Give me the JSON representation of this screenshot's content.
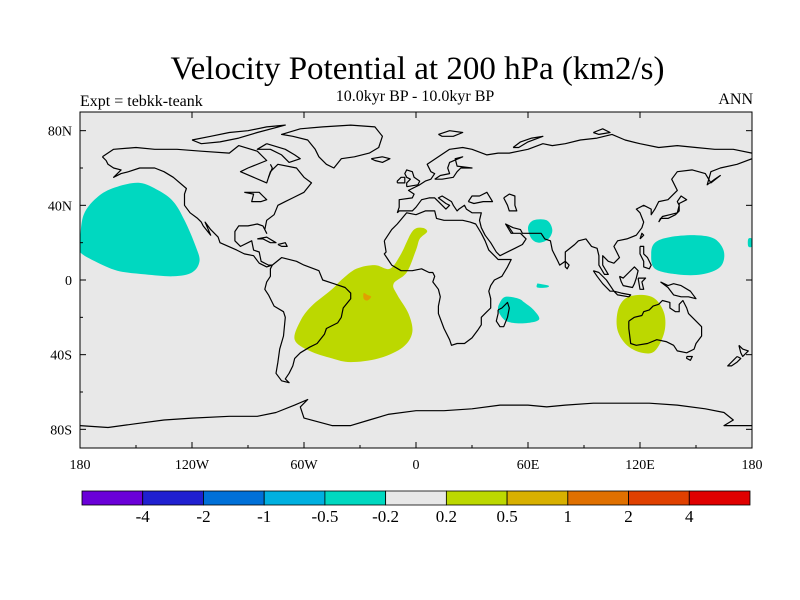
{
  "title": "Velocity Potential at 200 hPa (km2/s)",
  "subtitle": "10.0kyr BP - 10.0kyr BP",
  "expt_label": "Expt = tebkk-teank",
  "season": "ANN",
  "colors": {
    "background_field": "#e8e8e8",
    "negative_anomaly": "#00d8c0",
    "positive_anomaly": "#bcd800",
    "positive_core": "#e0a000",
    "coastline": "#000000"
  },
  "chart_data": {
    "type": "map",
    "projection": "cylindrical-equidistant",
    "x_ticks": [
      "180",
      "120W",
      "60W",
      "0",
      "60E",
      "120E",
      "180"
    ],
    "x_tick_values": [
      -180,
      -120,
      -60,
      0,
      60,
      120,
      180
    ],
    "y_ticks": [
      "80N",
      "40N",
      "0",
      "40S",
      "80S"
    ],
    "y_tick_values": [
      80,
      40,
      0,
      -40,
      -80
    ],
    "lon_range": [
      -180,
      180
    ],
    "lat_range": [
      -90,
      90
    ],
    "anomaly_regions": [
      {
        "name": "north-pacific-negative",
        "class": "-0.5 to -0.2",
        "polygon": [
          [
            -180,
            20
          ],
          [
            -178,
            35
          ],
          [
            -170,
            45
          ],
          [
            -160,
            50
          ],
          [
            -148,
            52
          ],
          [
            -138,
            48
          ],
          [
            -130,
            42
          ],
          [
            -124,
            32
          ],
          [
            -118,
            18
          ],
          [
            -116,
            10
          ],
          [
            -120,
            4
          ],
          [
            -130,
            2
          ],
          [
            -145,
            3
          ],
          [
            -160,
            5
          ],
          [
            -172,
            10
          ],
          [
            -180,
            15
          ]
        ]
      },
      {
        "name": "atlantic-positive",
        "class": "0.2 to 0.5",
        "polygon": [
          [
            -45,
            -5
          ],
          [
            -56,
            -14
          ],
          [
            -62,
            -22
          ],
          [
            -65,
            -32
          ],
          [
            -57,
            -38
          ],
          [
            -45,
            -42
          ],
          [
            -35,
            -44
          ],
          [
            -20,
            -42
          ],
          [
            -7,
            -36
          ],
          [
            -2,
            -28
          ],
          [
            -4,
            -18
          ],
          [
            -10,
            -8
          ],
          [
            -12,
            -2
          ],
          [
            -5,
            4
          ],
          [
            0,
            16
          ],
          [
            2,
            22
          ],
          [
            6,
            26
          ],
          [
            3,
            28
          ],
          [
            -2,
            26
          ],
          [
            -8,
            14
          ],
          [
            -14,
            6
          ],
          [
            -22,
            8
          ],
          [
            -32,
            6
          ],
          [
            -40,
            0
          ]
        ]
      },
      {
        "name": "atlantic-core-positive",
        "class": "0.5 to 1",
        "polygon": [
          [
            -28,
            -7
          ],
          [
            -26,
            -8
          ],
          [
            -24,
            -9
          ],
          [
            -26,
            -11
          ],
          [
            -28,
            -10
          ]
        ]
      },
      {
        "name": "arabian-sea-negative",
        "class": "-0.5 to -0.2",
        "polygon": [
          [
            63,
            32
          ],
          [
            60,
            28
          ],
          [
            62,
            22
          ],
          [
            66,
            20
          ],
          [
            71,
            22
          ],
          [
            73,
            27
          ],
          [
            70,
            32
          ]
        ]
      },
      {
        "name": "indian-ocean-small-negative",
        "class": "-0.5 to -0.2",
        "polygon": [
          [
            65,
            -2
          ],
          [
            66,
            -2
          ],
          [
            71,
            -3
          ],
          [
            70,
            -4
          ],
          [
            65,
            -4
          ]
        ]
      },
      {
        "name": "madagascar-negative",
        "class": "-0.5 to -0.2",
        "polygon": [
          [
            45,
            -12
          ],
          [
            48,
            -9
          ],
          [
            55,
            -10
          ],
          [
            58,
            -12
          ],
          [
            63,
            -16
          ],
          [
            66,
            -21
          ],
          [
            60,
            -23
          ],
          [
            52,
            -23
          ],
          [
            47,
            -21
          ],
          [
            44,
            -16
          ]
        ]
      },
      {
        "name": "west-pacific-negative",
        "class": "-0.5 to -0.2",
        "polygon": [
          [
            126,
            14
          ],
          [
            128,
            20
          ],
          [
            136,
            23
          ],
          [
            150,
            24
          ],
          [
            160,
            22
          ],
          [
            165,
            15
          ],
          [
            163,
            7
          ],
          [
            153,
            3
          ],
          [
            140,
            3
          ],
          [
            128,
            6
          ]
        ]
      },
      {
        "name": "dateline-small-negative",
        "class": "-0.5 to -0.2",
        "polygon": [
          [
            178,
            22
          ],
          [
            180,
            22
          ],
          [
            180,
            18
          ],
          [
            178,
            18
          ]
        ]
      },
      {
        "name": "australia-positive",
        "class": "0.2 to 0.5",
        "polygon": [
          [
            108,
            -17
          ],
          [
            112,
            -10
          ],
          [
            120,
            -8
          ],
          [
            128,
            -10
          ],
          [
            133,
            -18
          ],
          [
            133,
            -28
          ],
          [
            128,
            -38
          ],
          [
            121,
            -39
          ],
          [
            113,
            -35
          ],
          [
            108,
            -27
          ]
        ]
      }
    ],
    "colorbar": {
      "colors": [
        "#6a00d8",
        "#2020d0",
        "#0070d8",
        "#00b0e0",
        "#00d8c0",
        "#e8e8e8",
        "#bcd800",
        "#d8b000",
        "#e07000",
        "#e04000",
        "#e00000"
      ],
      "labels": [
        "-4",
        "-2",
        "-1",
        "-0.5",
        "-0.2",
        "0.2",
        "0.5",
        "1",
        "2",
        "4"
      ]
    }
  }
}
